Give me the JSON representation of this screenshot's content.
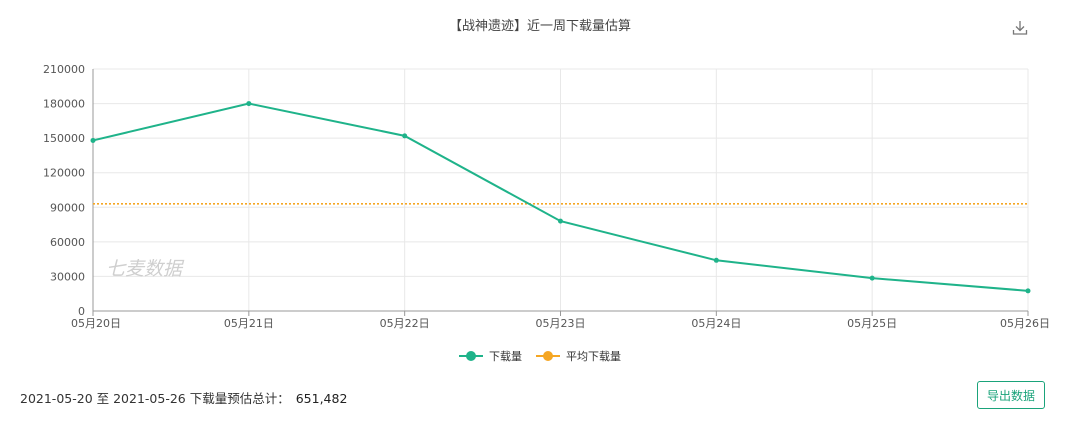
{
  "header": {
    "title": "【战神遗迹】近一周下载量估算"
  },
  "toolbar": {
    "download_icon": "download-icon"
  },
  "watermark": "七麦数据",
  "legend": {
    "position": "bottom-center"
  },
  "footer": {
    "summary_label": "2021-05-20 至 2021-05-26 下载量预估总计：",
    "total": "651,482",
    "export_label": "导出数据"
  },
  "colors": {
    "series": "#1fb38a",
    "average": "#f5a623",
    "grid": "#e8e8e8",
    "export": "#1aa37a"
  },
  "chart_data": {
    "type": "line",
    "title": "【战神遗迹】近一周下载量估算",
    "categories": [
      "05月20日",
      "05月21日",
      "05月22日",
      "05月23日",
      "05月24日",
      "05月25日",
      "05月26日"
    ],
    "series": [
      {
        "name": "下载量",
        "values": [
          148000,
          180000,
          152000,
          78000,
          44000,
          28500,
          17500
        ]
      },
      {
        "name": "平均下载量",
        "values": [
          93000,
          93000,
          93000,
          93000,
          93000,
          93000,
          93000
        ]
      }
    ],
    "yticks": [
      "0",
      "30000",
      "60000",
      "90000",
      "120000",
      "150000",
      "180000",
      "210000"
    ],
    "ylim": [
      0,
      210000
    ],
    "grid": true,
    "legend_position": "bottom"
  }
}
